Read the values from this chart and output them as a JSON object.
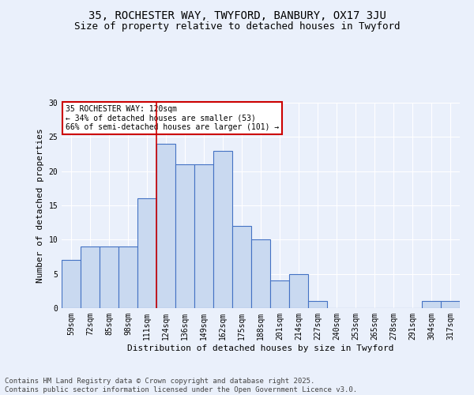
{
  "title": "35, ROCHESTER WAY, TWYFORD, BANBURY, OX17 3JU",
  "subtitle": "Size of property relative to detached houses in Twyford",
  "xlabel": "Distribution of detached houses by size in Twyford",
  "ylabel": "Number of detached properties",
  "categories": [
    "59sqm",
    "72sqm",
    "85sqm",
    "98sqm",
    "111sqm",
    "124sqm",
    "136sqm",
    "149sqm",
    "162sqm",
    "175sqm",
    "188sqm",
    "201sqm",
    "214sqm",
    "227sqm",
    "240sqm",
    "253sqm",
    "265sqm",
    "278sqm",
    "291sqm",
    "304sqm",
    "317sqm"
  ],
  "values": [
    7,
    9,
    9,
    9,
    16,
    24,
    21,
    21,
    23,
    12,
    10,
    4,
    5,
    1,
    0,
    0,
    0,
    0,
    0,
    1,
    1
  ],
  "bar_color": "#c9d9f0",
  "bar_edge_color": "#4472c4",
  "red_line_x": 4.5,
  "annotation_text": "35 ROCHESTER WAY: 120sqm\n← 34% of detached houses are smaller (53)\n66% of semi-detached houses are larger (101) →",
  "annotation_box_color": "#ffffff",
  "annotation_box_edge_color": "#cc0000",
  "annotation_text_color": "#000000",
  "red_line_color": "#cc0000",
  "background_color": "#eaf0fb",
  "footer_text": "Contains HM Land Registry data © Crown copyright and database right 2025.\nContains public sector information licensed under the Open Government Licence v3.0.",
  "ylim": [
    0,
    30
  ],
  "yticks": [
    0,
    5,
    10,
    15,
    20,
    25,
    30
  ],
  "title_fontsize": 10,
  "subtitle_fontsize": 9,
  "xlabel_fontsize": 8,
  "ylabel_fontsize": 8,
  "tick_fontsize": 7,
  "footer_fontsize": 6.5,
  "annotation_fontsize": 7
}
